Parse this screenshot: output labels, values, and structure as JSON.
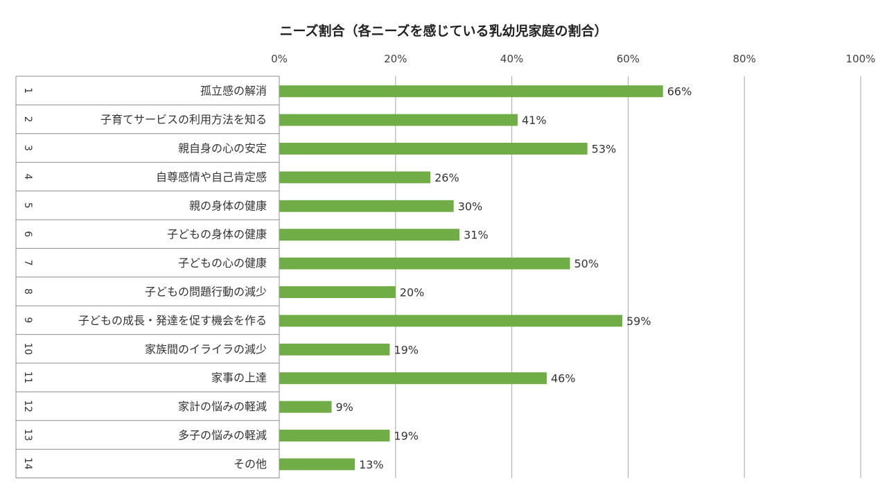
{
  "chart_data": {
    "type": "bar",
    "orientation": "horizontal",
    "title": "ニーズ割合（各ニーズを感じている乳幼児家庭の割合）",
    "row_numbers": [
      "1",
      "2",
      "3",
      "4",
      "5",
      "6",
      "7",
      "8",
      "9",
      "10",
      "11",
      "12",
      "13",
      "14"
    ],
    "categories": [
      "孤立感の解消",
      "子育てサービスの利用方法を知る",
      "親自身の心の安定",
      "自尊感情や自己肯定感",
      "親の身体の健康",
      "子どもの身体の健康",
      "子どもの心の健康",
      "子どもの問題行動の減少",
      "子どもの成長・発達を促す機会を作る",
      "家族間のイライラの減少",
      "家事の上達",
      "家計の悩みの軽減",
      "多子の悩みの軽減",
      "その他"
    ],
    "values": [
      66,
      41,
      53,
      26,
      30,
      31,
      50,
      20,
      59,
      19,
      46,
      9,
      19,
      13
    ],
    "value_labels": [
      "66%",
      "41%",
      "53%",
      "26%",
      "30%",
      "31%",
      "50%",
      "20%",
      "59%",
      "19%",
      "46%",
      "9%",
      "19%",
      "13%"
    ],
    "xlim": [
      0,
      100
    ],
    "xticks": [
      0,
      20,
      40,
      60,
      80,
      100
    ],
    "xtick_labels": [
      "0%",
      "20%",
      "40%",
      "60%",
      "80%",
      "100%"
    ],
    "x_axis_position": "top",
    "grid": true,
    "legend": "none",
    "bar_color": "#70AD47",
    "grid_color": "#A6A6A6",
    "border_color": "#8C8C8C"
  }
}
